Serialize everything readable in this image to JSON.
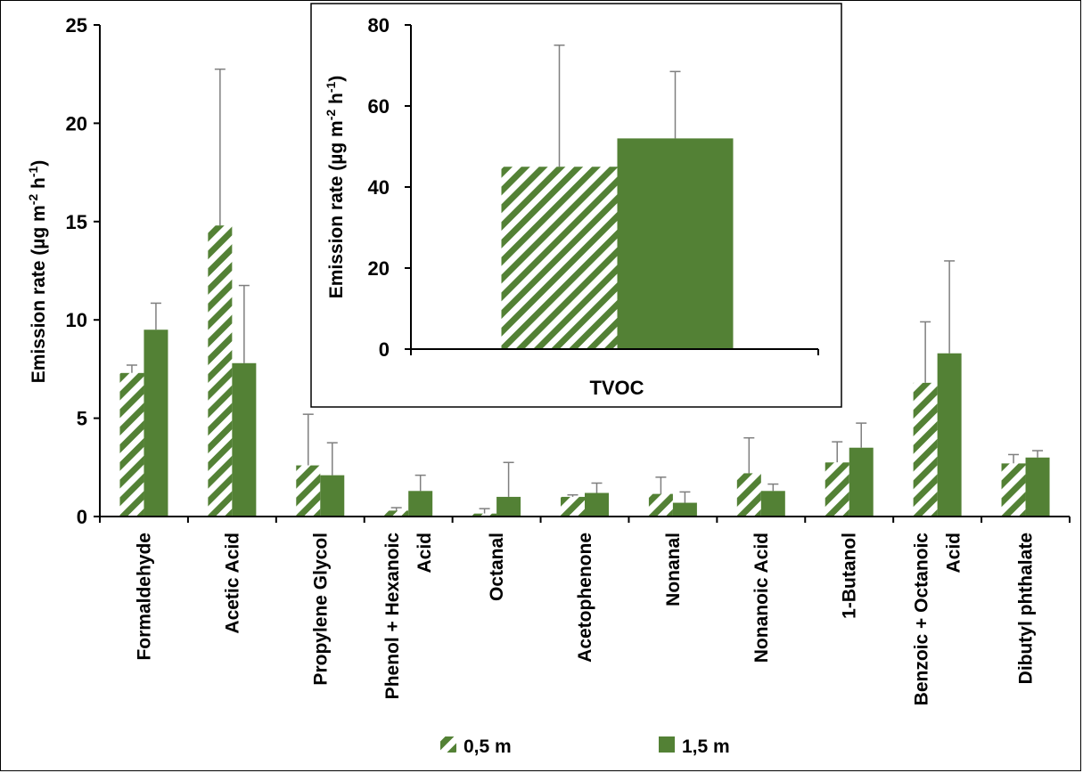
{
  "chart_data": [
    {
      "type": "bar",
      "ylabel": "Emission rate (µg m",
      "ylabel_sup1": "-2",
      "ylabel_mid": " h",
      "ylabel_sup2": "-1",
      "ylabel_end": ")",
      "ylim": [
        0,
        25
      ],
      "yticks": [
        "0",
        "5",
        "10",
        "15",
        "20",
        "25"
      ],
      "categories": [
        [
          "Formaldehyde"
        ],
        [
          "Acetic Acid"
        ],
        [
          "Propylene Glycol"
        ],
        [
          "Phenol + Hexanoic",
          "Acid"
        ],
        [
          "Octanal"
        ],
        [
          "Acetophenone"
        ],
        [
          "Nonanal"
        ],
        [
          "Nonanoic Acid"
        ],
        [
          "1-Butanol"
        ],
        [
          "Benzoic + Octanoic",
          "Acid"
        ],
        [
          "Dibutyl phthalate"
        ]
      ],
      "series": [
        {
          "name": "0,5 m",
          "pattern": "hatched",
          "values": [
            7.3,
            14.8,
            2.6,
            0.3,
            0.15,
            1.0,
            1.15,
            2.2,
            2.75,
            6.8,
            2.7
          ],
          "err_upper": [
            7.7,
            22.75,
            5.2,
            0.45,
            0.4,
            1.1,
            2.0,
            4.0,
            3.8,
            9.9,
            3.15
          ]
        },
        {
          "name": "1,5 m",
          "pattern": "solid",
          "values": [
            9.5,
            7.8,
            2.1,
            1.3,
            1.0,
            1.2,
            0.7,
            1.3,
            3.5,
            8.3,
            3.0
          ],
          "err_upper": [
            10.85,
            11.75,
            3.75,
            2.1,
            2.75,
            1.7,
            1.25,
            1.65,
            4.75,
            13.0,
            3.35
          ]
        }
      ],
      "legend_position": "bottom",
      "grid": false
    },
    {
      "type": "bar",
      "inset": true,
      "ylabel": "Emission rate (µg m",
      "ylabel_sup1": "-2",
      "ylabel_mid": " h",
      "ylabel_sup2": "-1",
      "ylabel_end": ")",
      "ylim": [
        0,
        80
      ],
      "yticks": [
        "0",
        "20",
        "40",
        "60",
        "80"
      ],
      "categories": [
        "TVOC"
      ],
      "series": [
        {
          "name": "0,5 m",
          "pattern": "hatched",
          "values": [
            45
          ],
          "err_upper": [
            75
          ]
        },
        {
          "name": "1,5 m",
          "pattern": "solid",
          "values": [
            52
          ],
          "err_upper": [
            68.5
          ]
        }
      ],
      "grid": false
    }
  ],
  "colors": {
    "bar_green": "#538135",
    "error": "#7f7f7f",
    "axis": "#000000"
  }
}
